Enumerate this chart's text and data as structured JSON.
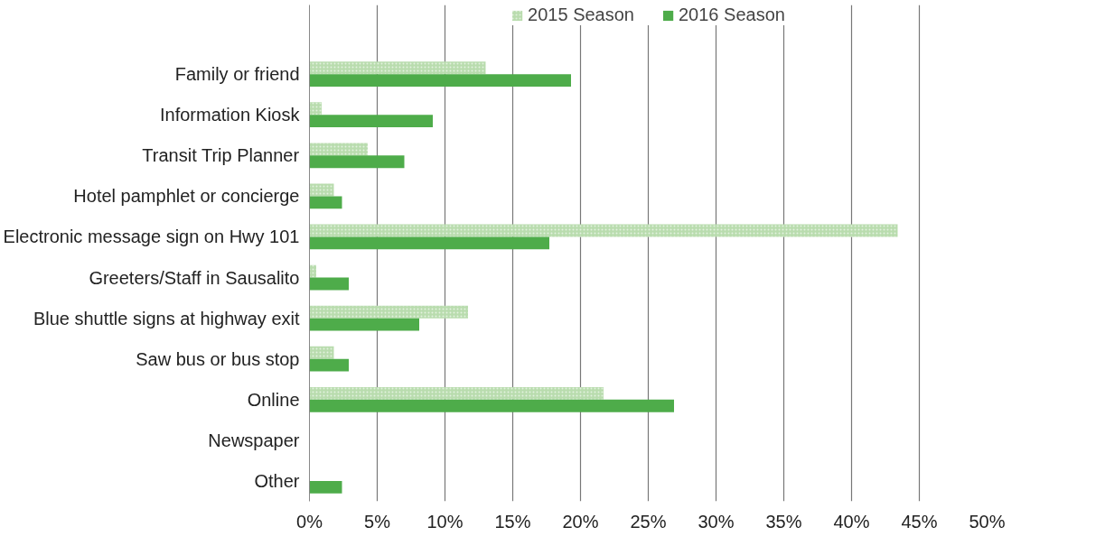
{
  "chart_data": {
    "type": "bar",
    "orientation": "horizontal",
    "categories": [
      "Family or friend",
      "Information Kiosk",
      "Transit Trip Planner",
      "Hotel pamphlet or concierge",
      "Electronic message sign on Hwy 101",
      "Greeters/Staff in Sausalito",
      "Blue shuttle signs at highway exit",
      "Saw bus or bus stop",
      "Online",
      "Newspaper",
      "Other"
    ],
    "series": [
      {
        "name": "2015 Season",
        "color": "#b9dcae",
        "values": [
          13.0,
          0.9,
          4.3,
          1.8,
          43.4,
          0.5,
          11.7,
          1.8,
          21.7,
          0,
          0
        ]
      },
      {
        "name": "2016 Season",
        "color": "#4eac4a",
        "values": [
          19.3,
          9.1,
          7.0,
          2.4,
          17.7,
          2.9,
          8.1,
          2.9,
          26.9,
          0,
          2.4
        ]
      }
    ],
    "xlim": [
      0,
      50
    ],
    "xticks": [
      {
        "value": 0,
        "label": "0%"
      },
      {
        "value": 5,
        "label": "5%"
      },
      {
        "value": 10,
        "label": "10%"
      },
      {
        "value": 15,
        "label": "15%"
      },
      {
        "value": 20,
        "label": "20%"
      },
      {
        "value": 25,
        "label": "25%"
      },
      {
        "value": 30,
        "label": "30%"
      },
      {
        "value": 35,
        "label": "35%"
      },
      {
        "value": 40,
        "label": "40%"
      },
      {
        "value": 45,
        "label": "45%"
      },
      {
        "value": 50,
        "label": "50%"
      }
    ],
    "grid": "x",
    "legend": "top"
  }
}
